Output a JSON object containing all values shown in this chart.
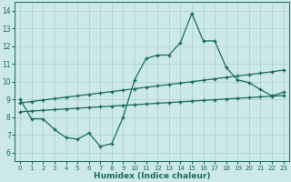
{
  "xlabel": "Humidex (Indice chaleur)",
  "bg_color": "#cce8e8",
  "grid_color": "#aacfcf",
  "line_color": "#1a6b60",
  "xlim": [
    -0.5,
    23.5
  ],
  "ylim": [
    5.5,
    14.5
  ],
  "xticks": [
    0,
    1,
    2,
    3,
    4,
    5,
    6,
    7,
    8,
    9,
    10,
    11,
    12,
    13,
    14,
    15,
    16,
    17,
    18,
    19,
    20,
    21,
    22,
    23
  ],
  "yticks": [
    6,
    7,
    8,
    9,
    10,
    11,
    12,
    13,
    14
  ],
  "line1_x": [
    0,
    1,
    2,
    3,
    4,
    5,
    6,
    7,
    8,
    9,
    10,
    11,
    12,
    13,
    14,
    15,
    16,
    17,
    18,
    19,
    20,
    21,
    22,
    23
  ],
  "line1_y": [
    9.0,
    7.9,
    7.9,
    7.3,
    6.85,
    6.75,
    7.1,
    6.35,
    6.5,
    8.0,
    10.1,
    11.3,
    11.5,
    11.5,
    12.2,
    13.85,
    12.3,
    12.3,
    10.8,
    10.1,
    9.95,
    9.55,
    9.2,
    9.4
  ],
  "line2_x": [
    0,
    1,
    2,
    3,
    4,
    5,
    6,
    7,
    8,
    9,
    10,
    11,
    12,
    13,
    14,
    15,
    16,
    17,
    18,
    19,
    20,
    21,
    22,
    23
  ],
  "line2_y": [
    8.8,
    8.88,
    8.96,
    9.04,
    9.12,
    9.2,
    9.28,
    9.36,
    9.44,
    9.52,
    9.6,
    9.68,
    9.76,
    9.84,
    9.92,
    10.0,
    10.08,
    10.16,
    10.24,
    10.32,
    10.4,
    10.48,
    10.56,
    10.65
  ],
  "line3_x": [
    0,
    1,
    2,
    3,
    4,
    5,
    6,
    7,
    8,
    9,
    10,
    11,
    12,
    13,
    14,
    15,
    16,
    17,
    18,
    19,
    20,
    21,
    22,
    23
  ],
  "line3_y": [
    8.3,
    8.34,
    8.38,
    8.42,
    8.46,
    8.5,
    8.54,
    8.58,
    8.62,
    8.66,
    8.7,
    8.74,
    8.78,
    8.82,
    8.86,
    8.9,
    8.94,
    8.98,
    9.02,
    9.06,
    9.1,
    9.14,
    9.18,
    9.22
  ],
  "markersize": 2.5,
  "linewidth": 0.9
}
